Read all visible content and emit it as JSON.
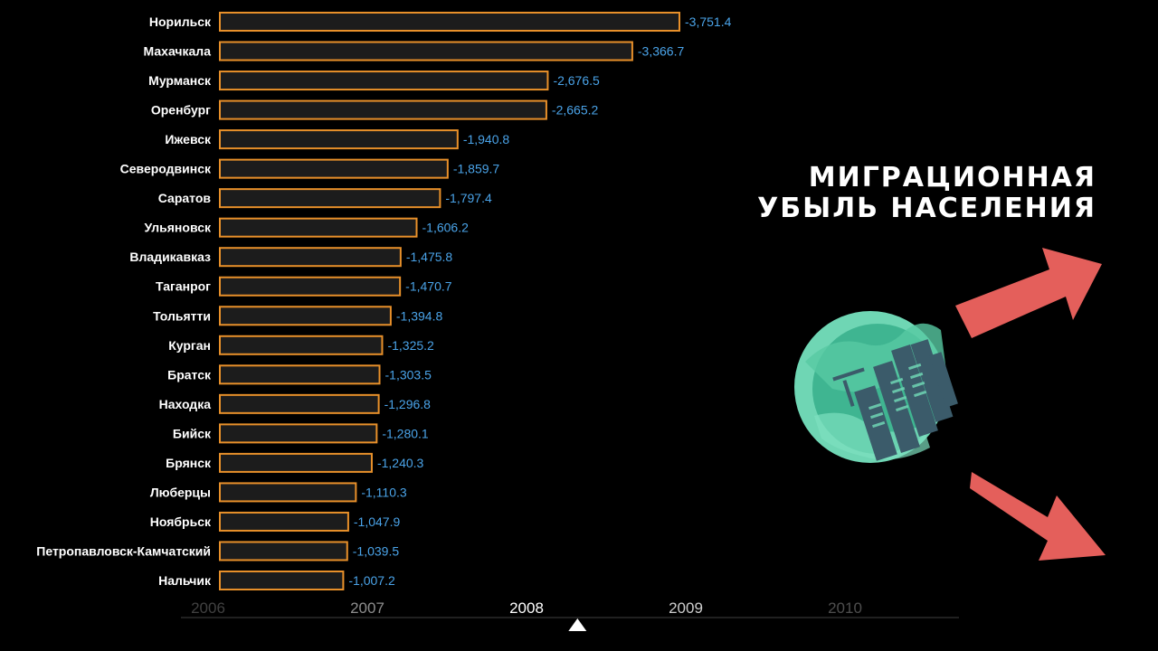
{
  "title": {
    "line1": "МИГРАЦИОННАЯ",
    "line2": "УБЫЛЬ НАСЕЛЕНИЯ"
  },
  "colors": {
    "bar_fill": "#1c1c1c",
    "bar_stroke": "#e8902a",
    "value_text": "#4aa3e8",
    "label_text": "#ffffff",
    "arrow": "#e45f5b",
    "globe_outer": "#6fd6b4",
    "globe_inner": "#3fb591",
    "city": "#3b5b6a"
  },
  "timeline": {
    "years": [
      "2006",
      "2007",
      "2008",
      "2009",
      "2010"
    ],
    "current_position": 2008.32
  },
  "chart_data": {
    "type": "bar",
    "orientation": "horizontal",
    "categories": [
      "Норильск",
      "Махачкала",
      "Мурманск",
      "Оренбург",
      "Ижевск",
      "Северодвинск",
      "Саратов",
      "Ульяновск",
      "Владикавказ",
      "Таганрог",
      "Тольятти",
      "Курган",
      "Братск",
      "Находка",
      "Бийск",
      "Брянск",
      "Люберцы",
      "Ноябрьск",
      "Петропавловск-Камчатский",
      "Нальчик"
    ],
    "values": [
      -3751.4,
      -3366.7,
      -2676.5,
      -2665.2,
      -1940.8,
      -1859.7,
      -1797.4,
      -1606.2,
      -1475.8,
      -1470.7,
      -1394.8,
      -1325.2,
      -1303.5,
      -1296.8,
      -1280.1,
      -1240.3,
      -1110.3,
      -1047.9,
      -1039.5,
      -1007.2
    ],
    "value_labels": [
      "-3,751.4",
      "-3,366.7",
      "-2,676.5",
      "-2,665.2",
      "-1,940.8",
      "-1,859.7",
      "-1,797.4",
      "-1,606.2",
      "-1,475.8",
      "-1,470.7",
      "-1,394.8",
      "-1,325.2",
      "-1,303.5",
      "-1,296.8",
      "-1,280.1",
      "-1,240.3",
      "-1,110.3",
      "-1,047.9",
      "-1,039.5",
      "-1,007.2"
    ],
    "xlabel": "",
    "ylabel": "",
    "legend": "none",
    "grid": false
  }
}
